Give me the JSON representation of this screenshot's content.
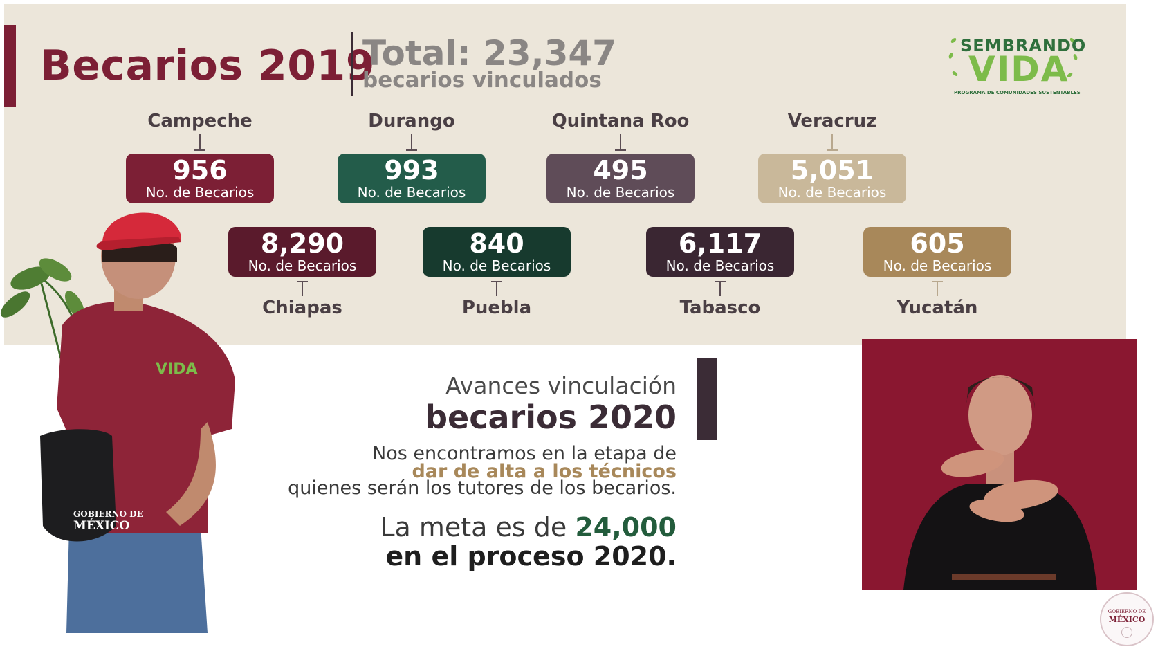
{
  "header": {
    "title": "Becarios 2019",
    "total_line": "Total: 23,347",
    "total_sub": "becarios vinculados"
  },
  "logo": {
    "top_text": "SEMBRANDO",
    "main_text": "VIDA",
    "sub_text": "PROGRAMA DE COMUNIDADES SUSTENTABLES"
  },
  "states_top": [
    {
      "name": "Campeche",
      "value": "956",
      "label": "No. de Becarios",
      "color": "#7c1f35"
    },
    {
      "name": "Durango",
      "value": "993",
      "label": "No. de Becarios",
      "color": "#235c4a"
    },
    {
      "name": "Quintana Roo",
      "value": "495",
      "label": "No. de Becarios",
      "color": "#5f4c58"
    },
    {
      "name": "Veracruz",
      "value": "5,051",
      "label": "No. de Becarios",
      "color": "#c9b89a"
    }
  ],
  "states_bottom": [
    {
      "name": "Chiapas",
      "value": "8,290",
      "label": "No. de Becarios",
      "color": "#5a1a2c"
    },
    {
      "name": "Puebla",
      "value": "840",
      "label": "No. de Becarios",
      "color": "#173a2e"
    },
    {
      "name": "Tabasco",
      "value": "6,117",
      "label": "No. de Becarios",
      "color": "#3a2632"
    },
    {
      "name": "Yucatán",
      "value": "605",
      "label": "No. de Becarios",
      "color": "#a8885a"
    }
  ],
  "avances": {
    "line1": "Avances vinculación",
    "line2": "becarios 2020",
    "desc1": "Nos encontramos en la etapa de",
    "desc2": "dar de alta a los técnicos",
    "desc3": "quienes serán los tutores de los becarios.",
    "meta_prefix": "La meta es de ",
    "meta_value": "24,000",
    "meta_line2": "en el proceso 2020."
  },
  "photo": {
    "shirt_logo": "VIDA",
    "seal_line1": "GOBIERNO DE",
    "seal_line2": "MÉXICO"
  },
  "corner_seal": {
    "line1": "GOBIERNO DE",
    "line2": "MÉXICO"
  }
}
